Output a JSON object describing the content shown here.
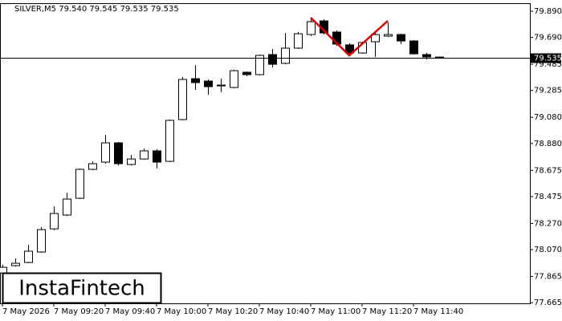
{
  "chart_data": {
    "type": "candlestick",
    "subtitle": "SILVER,M5  79.540 79.545 79.535 79.535",
    "watermark": "InstaFintech",
    "categories": [
      "7 May 2026",
      null,
      null,
      null,
      "7 May 09:20",
      null,
      null,
      null,
      "7 May 09:40",
      null,
      null,
      null,
      "7 May 10:00",
      null,
      null,
      null,
      "7 May 10:20",
      null,
      null,
      null,
      "7 May 10:40",
      null,
      null,
      null,
      "7 May 11:00",
      null,
      null,
      null,
      "7 May 11:20",
      null,
      null,
      null,
      "7 May 11:40",
      null,
      null
    ],
    "open": [
      77.892,
      77.948,
      77.972,
      78.052,
      78.229,
      78.334,
      78.462,
      78.683,
      78.738,
      78.885,
      78.72,
      78.762,
      78.824,
      78.744,
      79.063,
      79.375,
      79.357,
      79.32,
      79.308,
      79.424,
      79.406,
      79.559,
      79.492,
      79.608,
      79.712,
      79.816,
      79.731,
      79.633,
      79.571,
      79.657,
      79.7,
      79.712,
      79.663,
      79.559,
      79.54
    ],
    "high": [
      77.954,
      78.003,
      78.107,
      78.242,
      78.401,
      78.505,
      78.69,
      78.744,
      78.946,
      78.891,
      78.793,
      78.842,
      78.836,
      79.063,
      79.387,
      79.479,
      79.369,
      79.375,
      79.443,
      79.43,
      79.559,
      79.602,
      79.724,
      79.731,
      79.841,
      79.829,
      79.743,
      79.645,
      79.657,
      79.731,
      79.804,
      79.718,
      79.669,
      79.571,
      79.545
    ],
    "low": [
      77.88,
      77.941,
      77.966,
      78.046,
      78.217,
      78.327,
      78.456,
      78.677,
      78.726,
      78.713,
      78.713,
      78.756,
      78.689,
      78.738,
      79.057,
      79.289,
      79.253,
      79.271,
      79.302,
      79.394,
      79.4,
      79.461,
      79.485,
      79.602,
      79.7,
      79.712,
      79.626,
      79.553,
      79.565,
      79.541,
      79.694,
      79.639,
      79.559,
      79.522,
      79.535
    ],
    "close": [
      77.935,
      77.966,
      78.058,
      78.223,
      78.346,
      78.456,
      78.683,
      78.726,
      78.885,
      78.726,
      78.762,
      78.824,
      78.738,
      79.057,
      79.369,
      79.345,
      79.314,
      79.326,
      79.436,
      79.406,
      79.553,
      79.485,
      79.608,
      79.718,
      79.81,
      79.724,
      79.639,
      79.571,
      79.651,
      79.712,
      79.712,
      79.663,
      79.565,
      79.541,
      79.535
    ],
    "current_price": 79.535,
    "ylim": [
      77.66,
      79.945
    ],
    "yticks": [
      {
        "value": 79.89,
        "label": "79.890"
      },
      {
        "value": 79.69,
        "label": "79.690"
      },
      79.485,
      79.285,
      {
        "value": 79.08,
        "label": "79.080"
      },
      {
        "value": 78.88,
        "label": "78.880"
      },
      78.675,
      78.475,
      {
        "value": 78.27,
        "label": "78.270"
      },
      {
        "value": 78.07,
        "label": "78.070"
      },
      77.865,
      77.665
    ],
    "up_color": "#ffffff",
    "down_color": "#000000",
    "grid": false
  }
}
